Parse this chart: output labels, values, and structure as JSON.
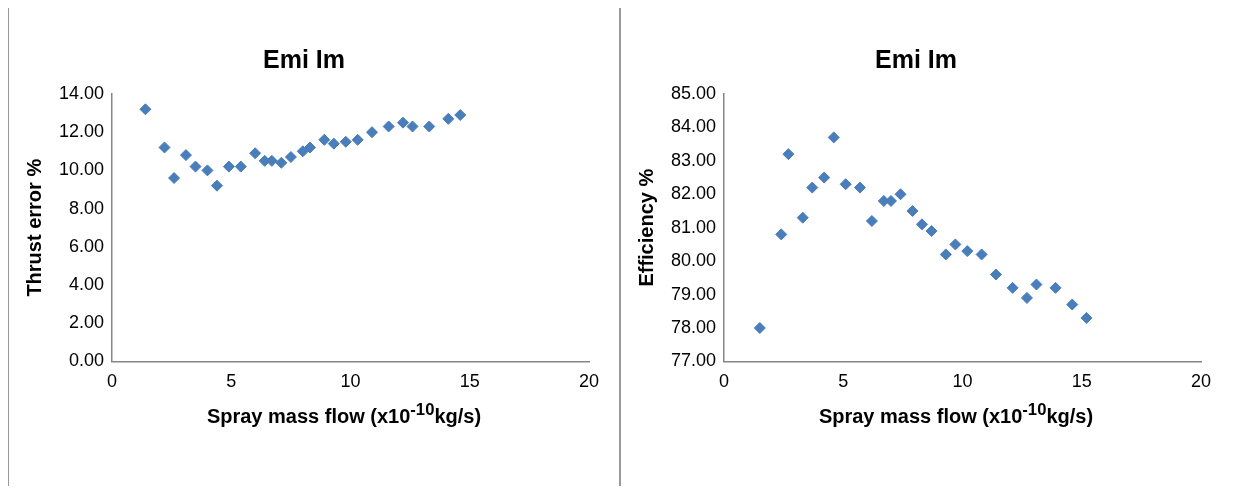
{
  "chart_data": [
    {
      "type": "scatter",
      "title": "Emi Im",
      "xlabel": "Spray mass flow (x10$^{-10}$kg/s)",
      "ylabel": "Thrust error %",
      "color": "#4a7ebb",
      "marker": "diamond",
      "x": [
        1.4,
        2.2,
        2.6,
        3.1,
        3.5,
        4.0,
        4.4,
        4.9,
        5.4,
        6.0,
        6.4,
        6.7,
        7.1,
        7.5,
        8.0,
        8.3,
        8.9,
        9.3,
        9.8,
        10.3,
        10.9,
        11.6,
        12.2,
        12.6,
        13.3,
        14.1,
        14.6
      ],
      "values": [
        13.2,
        11.2,
        9.6,
        10.8,
        10.2,
        10.0,
        9.2,
        10.2,
        10.2,
        10.9,
        10.5,
        10.5,
        10.4,
        10.7,
        11.0,
        11.2,
        11.6,
        11.4,
        11.5,
        11.6,
        12.0,
        12.3,
        12.5,
        12.3,
        12.3,
        12.7,
        12.9
      ],
      "xlim": [
        0,
        20
      ],
      "xticks": [
        0,
        5,
        10,
        15,
        20
      ],
      "ylim": [
        0,
        14
      ],
      "yticks": [
        {
          "value": 0,
          "label": "0.00"
        },
        {
          "value": 2,
          "label": "2.00"
        },
        {
          "value": 4,
          "label": "4.00"
        },
        {
          "value": 6,
          "label": "6.00"
        },
        {
          "value": 8,
          "label": "8.00"
        },
        {
          "value": 10,
          "label": "10.00"
        },
        {
          "value": 12,
          "label": "12.00"
        },
        {
          "value": 14,
          "label": "14.00"
        }
      ]
    },
    {
      "type": "scatter",
      "title": "Emi Im",
      "xlabel": "Spray mass flow (x10$^{-10}$kg/s)",
      "ylabel": "Efficiency %",
      "color": "#4a7ebb",
      "marker": "diamond",
      "x": [
        1.5,
        2.4,
        2.7,
        3.3,
        3.7,
        4.2,
        4.6,
        5.1,
        5.7,
        6.2,
        6.7,
        7.0,
        7.4,
        7.9,
        8.3,
        8.7,
        9.3,
        9.7,
        10.2,
        10.8,
        11.4,
        12.1,
        12.7,
        13.1,
        13.9,
        14.6,
        15.2
      ],
      "values": [
        78.0,
        80.8,
        83.2,
        81.3,
        82.2,
        82.5,
        83.7,
        82.3,
        82.2,
        81.2,
        81.8,
        81.8,
        82.0,
        81.5,
        81.1,
        80.9,
        80.2,
        80.5,
        80.3,
        80.2,
        79.6,
        79.2,
        78.9,
        79.3,
        79.2,
        78.7,
        78.3
      ],
      "xlim": [
        0,
        20
      ],
      "xticks": [
        0,
        5,
        10,
        15,
        20
      ],
      "ylim": [
        77,
        85
      ],
      "yticks": [
        {
          "value": 77,
          "label": "77.00"
        },
        {
          "value": 78,
          "label": "78.00"
        },
        {
          "value": 79,
          "label": "79.00"
        },
        {
          "value": 80,
          "label": "80.00"
        },
        {
          "value": 81,
          "label": "81.00"
        },
        {
          "value": 82,
          "label": "82.00"
        },
        {
          "value": 83,
          "label": "83.00"
        },
        {
          "value": 84,
          "label": "84.00"
        },
        {
          "value": 85,
          "label": "85.00"
        }
      ]
    }
  ]
}
